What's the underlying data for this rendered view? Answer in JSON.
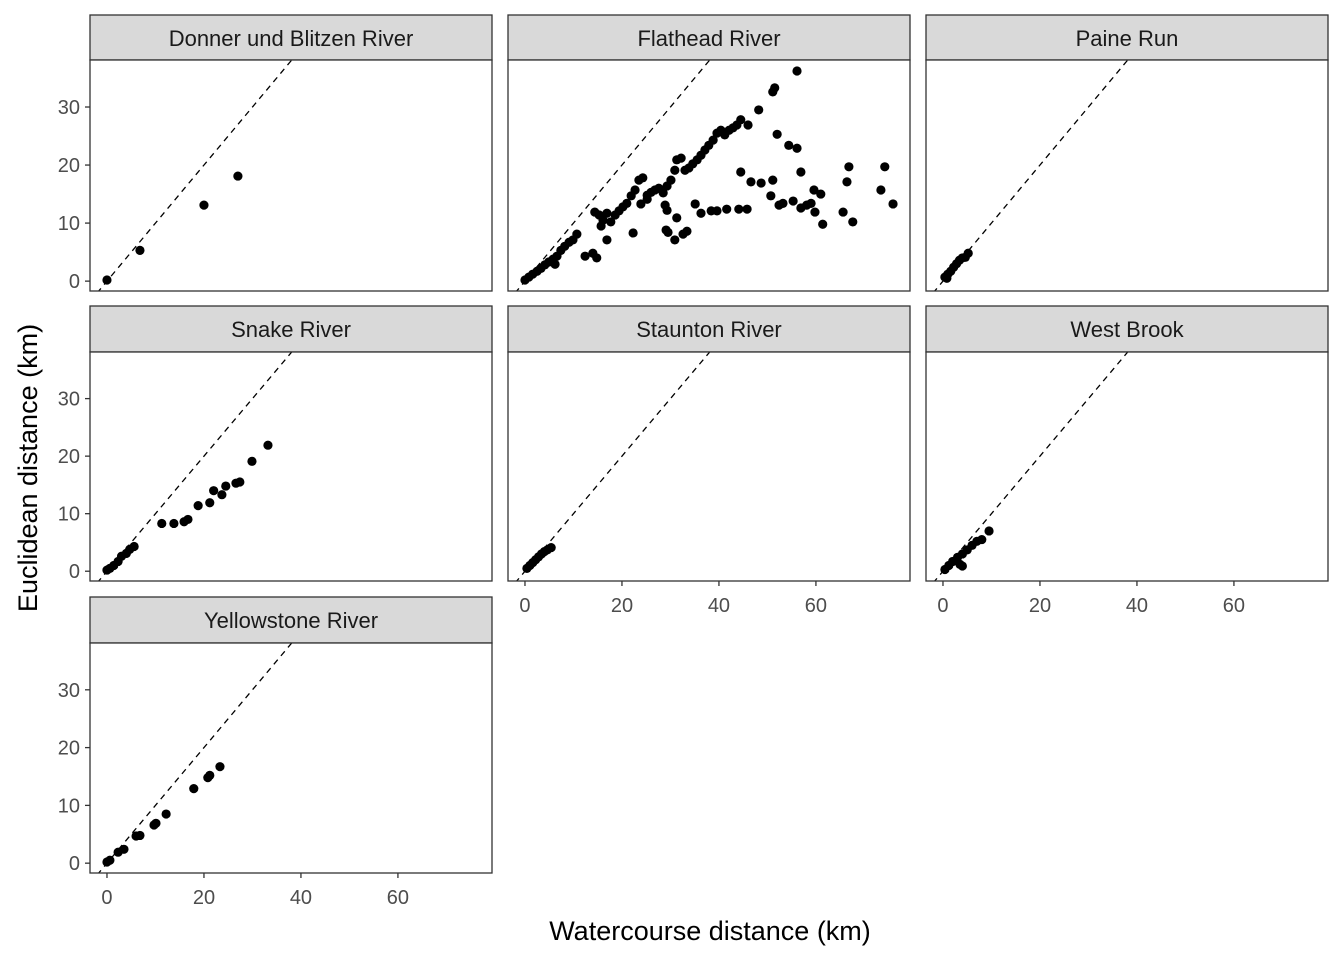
{
  "chart_data": {
    "type": "scatter",
    "layout": "facet_wrap 3 columns",
    "xlabel": "Watercourse distance (km)",
    "ylabel": "Euclidean distance (km)",
    "xlim": [
      -3.5,
      79.4
    ],
    "ylim": [
      -1.7,
      38.1
    ],
    "xticks": [
      0,
      20,
      40,
      60
    ],
    "yticks": [
      0,
      10,
      20,
      30
    ],
    "reference_line": "y = x (dashed)",
    "grid": false,
    "panels": [
      {
        "title": "Donner und Blitzen River",
        "points": [
          [
            0,
            0.2
          ],
          [
            6.8,
            5.3
          ],
          [
            20,
            13.1
          ],
          [
            27,
            18.1
          ]
        ]
      },
      {
        "title": "Flathead River",
        "points": [
          [
            0,
            0.2
          ],
          [
            0.8,
            0.7
          ],
          [
            1.6,
            1.2
          ],
          [
            2.5,
            1.7
          ],
          [
            3.3,
            2.2
          ],
          [
            4.1,
            2.8
          ],
          [
            4.9,
            3.3
          ],
          [
            5.8,
            3.8
          ],
          [
            6.6,
            4.3
          ],
          [
            7.4,
            5.3
          ],
          [
            8.2,
            6
          ],
          [
            9.1,
            6.7
          ],
          [
            9.9,
            7.1
          ],
          [
            10.7,
            8.1
          ],
          [
            6.2,
            2.9
          ],
          [
            12.4,
            4.3
          ],
          [
            14,
            4.8
          ],
          [
            14.8,
            4
          ],
          [
            16.9,
            7.1
          ],
          [
            15.7,
            9.5
          ],
          [
            14.4,
            11.9
          ],
          [
            15.3,
            11.4
          ],
          [
            16.1,
            10.5
          ],
          [
            16.9,
            11.7
          ],
          [
            17.7,
            10.2
          ],
          [
            18.6,
            11.4
          ],
          [
            19.4,
            12.1
          ],
          [
            20.2,
            12.8
          ],
          [
            21,
            13.4
          ],
          [
            21.9,
            14.7
          ],
          [
            22.7,
            15.7
          ],
          [
            23.5,
            17.4
          ],
          [
            24.3,
            17.8
          ],
          [
            22.3,
            8.3
          ],
          [
            25.2,
            14.8
          ],
          [
            26,
            15.3
          ],
          [
            26.8,
            15.7
          ],
          [
            27.6,
            16
          ],
          [
            28.5,
            15.2
          ],
          [
            29.3,
            16.4
          ],
          [
            30.1,
            17.4
          ],
          [
            30.9,
            19.1
          ],
          [
            31.3,
            20.9
          ],
          [
            32.2,
            21.2
          ],
          [
            33,
            19.1
          ],
          [
            33.8,
            19.5
          ],
          [
            34.6,
            20.2
          ],
          [
            35.5,
            20.9
          ],
          [
            36.3,
            21.7
          ],
          [
            37.1,
            22.6
          ],
          [
            37.9,
            23.4
          ],
          [
            38.8,
            24.3
          ],
          [
            39.6,
            25.5
          ],
          [
            40.4,
            26
          ],
          [
            41.2,
            25.2
          ],
          [
            42.1,
            26
          ],
          [
            42.9,
            26.4
          ],
          [
            43.7,
            26.9
          ],
          [
            44.5,
            27.8
          ],
          [
            46,
            26.9
          ],
          [
            48.2,
            29.5
          ],
          [
            51.1,
            32.6
          ],
          [
            51.5,
            33.3
          ],
          [
            56.1,
            36.2
          ],
          [
            23.9,
            13.3
          ],
          [
            25.2,
            14.1
          ],
          [
            28.9,
            13.1
          ],
          [
            29.3,
            12.2
          ],
          [
            29.1,
            8.8
          ],
          [
            29.5,
            8.4
          ],
          [
            30.9,
            7.1
          ],
          [
            31.3,
            10.9
          ],
          [
            32.6,
            8.1
          ],
          [
            33.4,
            8.6
          ],
          [
            35.1,
            13.3
          ],
          [
            36.3,
            11.7
          ],
          [
            38.4,
            12.1
          ],
          [
            39.6,
            12.1
          ],
          [
            41.6,
            12.4
          ],
          [
            44.1,
            12.4
          ],
          [
            45.8,
            12.4
          ],
          [
            44.5,
            18.8
          ],
          [
            46.6,
            17.1
          ],
          [
            48.7,
            16.9
          ],
          [
            51.1,
            17.4
          ],
          [
            50.7,
            14.7
          ],
          [
            52.4,
            13.1
          ],
          [
            53.2,
            13.4
          ],
          [
            55.3,
            13.8
          ],
          [
            56.9,
            12.6
          ],
          [
            58.1,
            13.1
          ],
          [
            59,
            13.4
          ],
          [
            59.8,
            11.9
          ],
          [
            61,
            15
          ],
          [
            61.4,
            9.8
          ],
          [
            52,
            25.3
          ],
          [
            54.4,
            23.4
          ],
          [
            56.1,
            22.9
          ],
          [
            56.9,
            18.8
          ],
          [
            59.6,
            15.7
          ],
          [
            65.6,
            11.9
          ],
          [
            66.4,
            17.1
          ],
          [
            66.8,
            19.7
          ],
          [
            67.6,
            10.2
          ],
          [
            73.4,
            15.7
          ],
          [
            74.2,
            19.7
          ],
          [
            75.9,
            13.3
          ]
        ]
      },
      {
        "title": "Paine Run",
        "points": [
          [
            0.4,
            0.7
          ],
          [
            0.8,
            0.5
          ],
          [
            1,
            1.2
          ],
          [
            1.6,
            1.7
          ],
          [
            2.2,
            2.4
          ],
          [
            2.8,
            3
          ],
          [
            3.4,
            3.6
          ],
          [
            4,
            4
          ],
          [
            4.6,
            4.1
          ],
          [
            5.2,
            4.8
          ]
        ]
      },
      {
        "title": "Snake River",
        "points": [
          [
            0,
            0.2
          ],
          [
            0.6,
            0.5
          ],
          [
            1.4,
            1
          ],
          [
            2.3,
            1.7
          ],
          [
            3,
            2.6
          ],
          [
            4,
            3.1
          ],
          [
            4.7,
            3.8
          ],
          [
            5.6,
            4.3
          ],
          [
            11.3,
            8.3
          ],
          [
            13.8,
            8.3
          ],
          [
            15.9,
            8.6
          ],
          [
            16.7,
            9
          ],
          [
            18.8,
            11.4
          ],
          [
            21.2,
            11.9
          ],
          [
            22,
            14
          ],
          [
            23.7,
            13.3
          ],
          [
            24.5,
            14.8
          ],
          [
            26.6,
            15.3
          ],
          [
            27.4,
            15.5
          ],
          [
            29.9,
            19.1
          ],
          [
            33.2,
            21.9
          ]
        ]
      },
      {
        "title": "Staunton River",
        "points": [
          [
            0.4,
            0.5
          ],
          [
            1,
            1
          ],
          [
            1.6,
            1.5
          ],
          [
            2.2,
            2
          ],
          [
            2.8,
            2.5
          ],
          [
            3.4,
            3
          ],
          [
            4,
            3.4
          ],
          [
            4.6,
            3.7
          ],
          [
            5.4,
            4.1
          ]
        ]
      },
      {
        "title": "West Brook",
        "points": [
          [
            0.4,
            0.3
          ],
          [
            1.2,
            1
          ],
          [
            2,
            1.7
          ],
          [
            3,
            2.4
          ],
          [
            4,
            3
          ],
          [
            5,
            3.7
          ],
          [
            6,
            4.5
          ],
          [
            7,
            5.2
          ],
          [
            4,
            0.9
          ],
          [
            3.5,
            1.2
          ],
          [
            8,
            5.5
          ],
          [
            9.5,
            7
          ]
        ]
      },
      {
        "title": "Yellowstone River",
        "points": [
          [
            0,
            0.2
          ],
          [
            0.6,
            0.5
          ],
          [
            2.3,
            1.9
          ],
          [
            3.5,
            2.4
          ],
          [
            6,
            4.7
          ],
          [
            6.8,
            4.8
          ],
          [
            9.7,
            6.6
          ],
          [
            10.1,
            6.9
          ],
          [
            12.2,
            8.5
          ],
          [
            17.9,
            12.9
          ],
          [
            20.8,
            14.8
          ],
          [
            21.2,
            15.2
          ],
          [
            23.3,
            16.7
          ]
        ]
      }
    ]
  }
}
